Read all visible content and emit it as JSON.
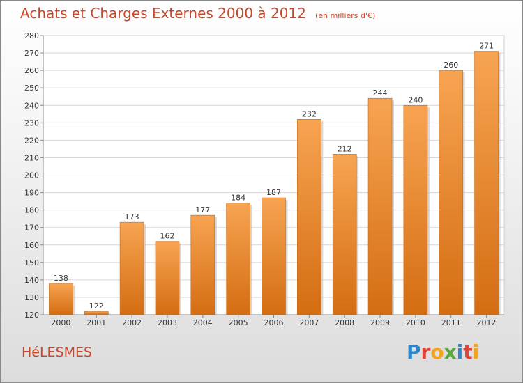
{
  "header": {
    "title": "Achats et Charges Externes 2000 à 2012",
    "subtitle": "(en milliers d'€)"
  },
  "footer": {
    "commune": "HéLESMES",
    "logo_text": "Proxiti"
  },
  "colors": {
    "title": "#c8462a",
    "bar_top": "#f7a452",
    "bar_bottom": "#d46d12",
    "grid": "#d6d6d6"
  },
  "chart_data": {
    "type": "bar",
    "title": "Achats et Charges Externes 2000 à 2012",
    "subtitle": "(en milliers d'€)",
    "categories": [
      "2000",
      "2001",
      "2002",
      "2003",
      "2004",
      "2005",
      "2006",
      "2007",
      "2008",
      "2009",
      "2010",
      "2011",
      "2012"
    ],
    "values": [
      138,
      122,
      173,
      162,
      177,
      184,
      187,
      232,
      212,
      244,
      240,
      260,
      271
    ],
    "ylim": [
      120,
      280
    ],
    "yticks": [
      120,
      130,
      140,
      150,
      160,
      170,
      180,
      190,
      200,
      210,
      220,
      230,
      240,
      250,
      260,
      270,
      280
    ],
    "grid": true,
    "data_labels": true
  }
}
